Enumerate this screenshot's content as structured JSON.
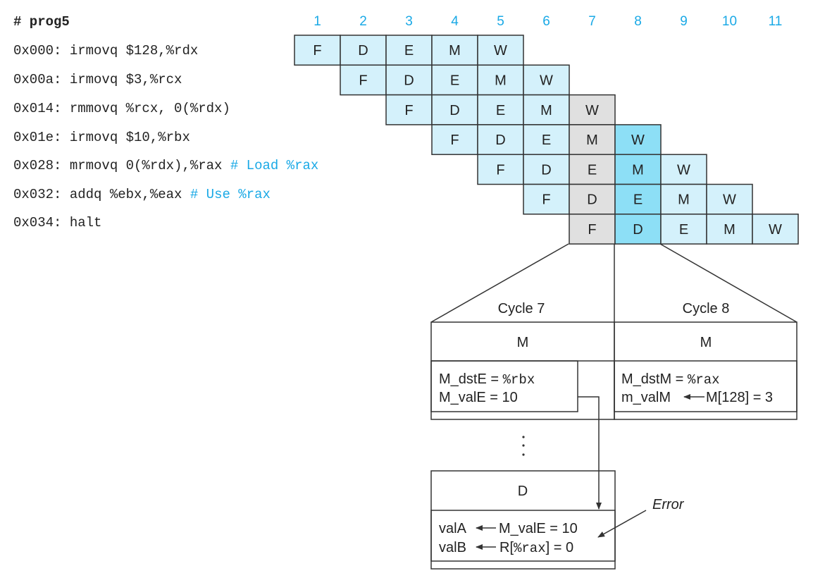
{
  "program": {
    "title": "# prog5",
    "lines": [
      {
        "code": "0x000: irmovq $128,%rdx",
        "comment": ""
      },
      {
        "code": "0x00a: irmovq  $3,%rcx",
        "comment": ""
      },
      {
        "code": "0x014: rmmovq %rcx, 0(%rdx)",
        "comment": ""
      },
      {
        "code": "0x01e: irmovq $10,%rbx",
        "comment": ""
      },
      {
        "code": "0x028: mrmovq 0(%rdx),%rax",
        "comment": "# Load %rax"
      },
      {
        "code": "0x032: addq %ebx,%eax",
        "comment": "# Use %rax"
      },
      {
        "code": "0x034: halt",
        "comment": ""
      }
    ]
  },
  "pipeline": {
    "cycles": [
      "1",
      "2",
      "3",
      "4",
      "5",
      "6",
      "7",
      "8",
      "9",
      "10",
      "11"
    ],
    "stages": [
      "F",
      "D",
      "E",
      "M",
      "W"
    ],
    "highlight_cycles": {
      "7": "#e0e0e0",
      "8": "#8ddff6"
    },
    "stage_fill": "#d4f1fb",
    "cycle_label_color": "#1aa9e6"
  },
  "detail": {
    "cycle7": {
      "title": "Cycle 7",
      "stage": "M",
      "line1_label": "M_dstE = ",
      "line1_reg": "%rbx",
      "line2": "M_valE = 10"
    },
    "cycle8": {
      "title": "Cycle 8",
      "stage": "M",
      "line1_label": "M_dstM = ",
      "line1_reg": "%rax",
      "line2_left": "m_valM",
      "line2_right": "M[128] = 3"
    },
    "ellipsis": "⋮",
    "decode": {
      "stage": "D",
      "valA_left": "valA",
      "valA_right": "M_valE = 10",
      "valB_left": "valB",
      "valB_pre": "R[",
      "valB_reg": "%rax",
      "valB_post": "] = 0"
    },
    "error_label": "Error"
  }
}
